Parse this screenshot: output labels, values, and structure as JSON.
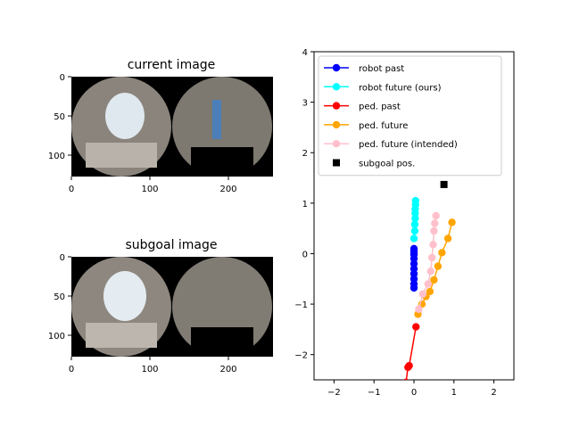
{
  "panels": {
    "current": {
      "title": "current image",
      "xticks": [
        "0",
        "100",
        "200"
      ],
      "yticks": [
        "0",
        "50",
        "100"
      ]
    },
    "subgoal": {
      "title": "subgoal image",
      "xticks": [
        "0",
        "100",
        "200"
      ],
      "yticks": [
        "0",
        "50",
        "100"
      ]
    }
  },
  "chart_data": {
    "type": "line",
    "xlim": [
      -2.5,
      2.5
    ],
    "ylim": [
      -2.5,
      4
    ],
    "xticks": [
      -2,
      -1,
      0,
      1,
      2
    ],
    "yticks": [
      -2,
      -1,
      0,
      1,
      2,
      3,
      4
    ],
    "grid": false,
    "legend_position": "top-left",
    "series": [
      {
        "name": "robot past",
        "color": "#0000ff",
        "marker": "circle",
        "x": [
          0,
          0,
          0,
          0,
          0,
          0,
          0,
          0,
          0,
          0,
          0
        ],
        "y": [
          -0.68,
          -0.6,
          -0.5,
          -0.4,
          -0.3,
          -0.2,
          -0.1,
          -0.02,
          0.05,
          0.1,
          0.0
        ]
      },
      {
        "name": "robot future (ours)",
        "color": "#00ffff",
        "marker": "circle",
        "x": [
          0,
          0.02,
          0.02,
          0.03,
          0.03,
          0.03,
          0.04,
          0.04
        ],
        "y": [
          0.3,
          0.45,
          0.58,
          0.7,
          0.8,
          0.88,
          0.97,
          1.05
        ]
      },
      {
        "name": "ped. past",
        "color": "#ff0000",
        "marker": "circle",
        "x": [
          -0.2,
          -0.15,
          -0.12,
          0.05
        ],
        "y": [
          -2.55,
          -2.25,
          -2.22,
          -1.45
        ]
      },
      {
        "name": "ped. future",
        "color": "#ffa500",
        "marker": "circle",
        "x": [
          0.1,
          0.2,
          0.3,
          0.4,
          0.5,
          0.6,
          0.7,
          0.85,
          0.95
        ],
        "y": [
          -1.2,
          -1.0,
          -0.85,
          -0.75,
          -0.52,
          -0.25,
          0.02,
          0.3,
          0.62
        ]
      },
      {
        "name": "ped. future (intended)",
        "color": "#ffc0cb",
        "marker": "circle",
        "x": [
          0.12,
          0.22,
          0.35,
          0.42,
          0.45,
          0.48,
          0.5,
          0.52,
          0.55
        ],
        "y": [
          -1.1,
          -0.8,
          -0.6,
          -0.35,
          -0.08,
          0.18,
          0.45,
          0.6,
          0.75
        ]
      },
      {
        "name": "subgoal pos.",
        "color": "#000000",
        "marker": "square",
        "x": [
          0.75
        ],
        "y": [
          1.37
        ]
      }
    ]
  }
}
